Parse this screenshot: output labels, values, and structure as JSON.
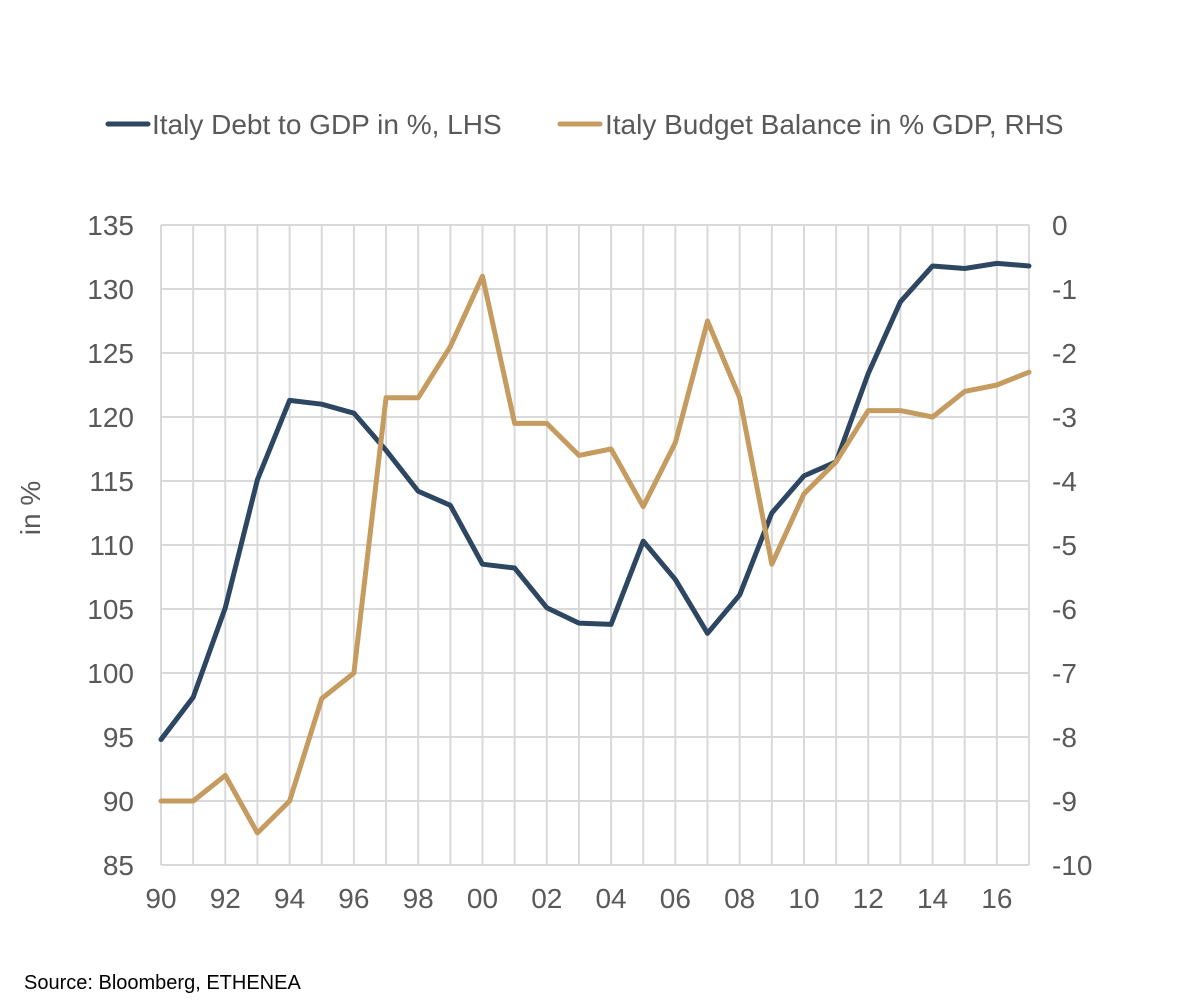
{
  "chart_data": {
    "type": "line",
    "title": "",
    "x_labels": [
      "90",
      "91",
      "92",
      "93",
      "94",
      "95",
      "96",
      "97",
      "98",
      "99",
      "00",
      "01",
      "02",
      "03",
      "04",
      "05",
      "06",
      "07",
      "08",
      "09",
      "10",
      "11",
      "12",
      "13",
      "14",
      "15",
      "16",
      "17"
    ],
    "x_tick_labels": [
      "90",
      "92",
      "94",
      "96",
      "98",
      "00",
      "02",
      "04",
      "06",
      "08",
      "10",
      "12",
      "14",
      "16"
    ],
    "ylabel": "in %",
    "ylim_left": [
      85,
      135
    ],
    "y_ticks_left": [
      135,
      130,
      125,
      120,
      115,
      110,
      105,
      100,
      95,
      90,
      85
    ],
    "ylim_right": [
      -10,
      0
    ],
    "y_ticks_right": [
      0,
      -1,
      -2,
      -3,
      -4,
      -5,
      -6,
      -7,
      -8,
      -9,
      -10
    ],
    "legend_position": "top-center",
    "series": [
      {
        "name": "Italy Debt to GDP in %, LHS",
        "axis": "left",
        "color": "#2d4661",
        "values": [
          94.8,
          98.1,
          105.1,
          115.1,
          121.3,
          121.0,
          120.3,
          117.4,
          114.2,
          113.1,
          108.5,
          108.2,
          105.1,
          103.9,
          103.8,
          110.3,
          107.3,
          103.1,
          106.1,
          112.5,
          115.4,
          116.5,
          123.4,
          129.0,
          131.8,
          131.6,
          132.0,
          131.8
        ]
      },
      {
        "name": "Italy Budget Balance in % GDP, RHS",
        "axis": "right",
        "color": "#c59b5f",
        "values": [
          -9.0,
          -9.0,
          -8.6,
          -9.5,
          -9.0,
          -7.4,
          -7.0,
          -2.7,
          -2.7,
          -1.9,
          -0.8,
          -3.1,
          -3.1,
          -3.6,
          -3.5,
          -4.4,
          -3.4,
          -1.5,
          -2.7,
          -5.3,
          -4.2,
          -3.7,
          -2.9,
          -2.9,
          -3.0,
          -2.6,
          -2.5,
          -2.3
        ]
      }
    ]
  },
  "footer": {
    "source": "Source: Bloomberg, ETHENEA"
  }
}
